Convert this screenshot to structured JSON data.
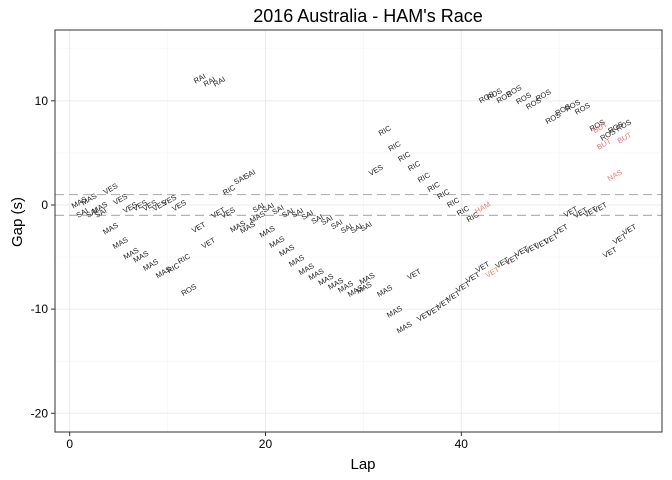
{
  "chart_data": {
    "type": "scatter",
    "title": "2016 Australia - HAM's Race",
    "xlabel": "Lap",
    "ylabel": "Gap (s)",
    "xlim": [
      -1.5,
      60.5
    ],
    "ylim": [
      -21.8,
      16.8
    ],
    "x_ticks": [
      0,
      20,
      40
    ],
    "y_ticks": [
      -20,
      -10,
      0,
      10
    ],
    "grid": true,
    "reference_lines": [
      1,
      -1
    ],
    "colors": {
      "default_label": "#1a1a1a",
      "highlight_label": "#f8766d",
      "grid_major": "#ebebeb",
      "grid_minor": "#f4f4f4",
      "panel_border": "#333333",
      "reference_line": "#b3b3b3"
    },
    "points": [
      {
        "x": 1,
        "y": 0.2,
        "label": "MAS"
      },
      {
        "x": 1.3,
        "y": -0.8,
        "label": "SAI"
      },
      {
        "x": 2,
        "y": 0.5,
        "label": "MAS"
      },
      {
        "x": 2.3,
        "y": -0.8,
        "label": "SAI"
      },
      {
        "x": 3.1,
        "y": -0.3,
        "label": "MAS"
      },
      {
        "x": 3.2,
        "y": -0.8,
        "label": "SAI"
      },
      {
        "x": 4.2,
        "y": 1.5,
        "label": "VES"
      },
      {
        "x": 4.2,
        "y": -2.3,
        "label": "MAS"
      },
      {
        "x": 5.2,
        "y": 0.5,
        "label": "VES"
      },
      {
        "x": 5.2,
        "y": -3.7,
        "label": "MAS"
      },
      {
        "x": 6.2,
        "y": -0.3,
        "label": "VES"
      },
      {
        "x": 6.3,
        "y": -4.7,
        "label": "MAS"
      },
      {
        "x": 7.2,
        "y": -0.1,
        "label": "VES"
      },
      {
        "x": 7.3,
        "y": -5.0,
        "label": "MAS"
      },
      {
        "x": 8.2,
        "y": -0.1,
        "label": "VES"
      },
      {
        "x": 8.3,
        "y": -5.8,
        "label": "MAS"
      },
      {
        "x": 9.2,
        "y": -0.1,
        "label": "VES"
      },
      {
        "x": 9.6,
        "y": -6.5,
        "label": "MAS"
      },
      {
        "x": 10.2,
        "y": 0.4,
        "label": "VES"
      },
      {
        "x": 10.6,
        "y": -6.1,
        "label": "RIC"
      },
      {
        "x": 11.2,
        "y": -0.1,
        "label": "VES"
      },
      {
        "x": 11.7,
        "y": -5.2,
        "label": "RIC"
      },
      {
        "x": 12.2,
        "y": -8.2,
        "label": "ROS"
      },
      {
        "x": 13.2,
        "y": -2.2,
        "label": "VET"
      },
      {
        "x": 13.3,
        "y": 12.1,
        "label": "RAI"
      },
      {
        "x": 14.2,
        "y": -3.7,
        "label": "VET"
      },
      {
        "x": 14.3,
        "y": 11.8,
        "label": "RAI"
      },
      {
        "x": 15.2,
        "y": -0.8,
        "label": "VET"
      },
      {
        "x": 15.3,
        "y": 11.8,
        "label": "RAI"
      },
      {
        "x": 16.2,
        "y": -0.8,
        "label": "VES"
      },
      {
        "x": 16.3,
        "y": 1.4,
        "label": "RIC"
      },
      {
        "x": 17.2,
        "y": -2.1,
        "label": "MAS"
      },
      {
        "x": 17.4,
        "y": 2.4,
        "label": "SAI"
      },
      {
        "x": 18.2,
        "y": -2.2,
        "label": "MAS"
      },
      {
        "x": 18.4,
        "y": 2.9,
        "label": "SAI"
      },
      {
        "x": 19.2,
        "y": -1.2,
        "label": "MAS"
      },
      {
        "x": 19.3,
        "y": -0.3,
        "label": "SAI"
      },
      {
        "x": 20.2,
        "y": -2.6,
        "label": "MAS"
      },
      {
        "x": 20.3,
        "y": -0.3,
        "label": "SAI"
      },
      {
        "x": 21.2,
        "y": -3.6,
        "label": "MAS"
      },
      {
        "x": 21.3,
        "y": -0.5,
        "label": "SAI"
      },
      {
        "x": 22.2,
        "y": -4.4,
        "label": "MAS"
      },
      {
        "x": 22.3,
        "y": -0.8,
        "label": "SAI"
      },
      {
        "x": 23.2,
        "y": -5.4,
        "label": "MAS"
      },
      {
        "x": 23.3,
        "y": -0.8,
        "label": "SAI"
      },
      {
        "x": 24.2,
        "y": -6.2,
        "label": "MAS"
      },
      {
        "x": 24.3,
        "y": -1.0,
        "label": "SAI"
      },
      {
        "x": 25.2,
        "y": -6.7,
        "label": "MAS"
      },
      {
        "x": 25.3,
        "y": -1.4,
        "label": "SAI"
      },
      {
        "x": 26.2,
        "y": -7.2,
        "label": "MAS"
      },
      {
        "x": 26.3,
        "y": -1.5,
        "label": "SAI"
      },
      {
        "x": 27.2,
        "y": -7.6,
        "label": "MAS"
      },
      {
        "x": 27.3,
        "y": -1.9,
        "label": "SAI"
      },
      {
        "x": 28.2,
        "y": -7.9,
        "label": "MAS"
      },
      {
        "x": 28.3,
        "y": -2.3,
        "label": "SAI"
      },
      {
        "x": 29.2,
        "y": -8.3,
        "label": "MAS"
      },
      {
        "x": 29.3,
        "y": -2.3,
        "label": "SAI"
      },
      {
        "x": 30.1,
        "y": -8.0,
        "label": "MAS"
      },
      {
        "x": 30.4,
        "y": -7.1,
        "label": "MAS"
      },
      {
        "x": 30.3,
        "y": -2.1,
        "label": "SAI"
      },
      {
        "x": 31.3,
        "y": 3.3,
        "label": "VES"
      },
      {
        "x": 32.2,
        "y": 7.1,
        "label": "RIC"
      },
      {
        "x": 32.2,
        "y": -8.3,
        "label": "MAS"
      },
      {
        "x": 33.2,
        "y": 5.6,
        "label": "RIC"
      },
      {
        "x": 33.2,
        "y": -10.3,
        "label": "MAS"
      },
      {
        "x": 34.2,
        "y": 4.6,
        "label": "RIC"
      },
      {
        "x": 34.2,
        "y": -11.8,
        "label": "MAS"
      },
      {
        "x": 35.2,
        "y": 3.7,
        "label": "RIC"
      },
      {
        "x": 35.2,
        "y": -6.7,
        "label": "VET"
      },
      {
        "x": 36.2,
        "y": 2.6,
        "label": "RIC"
      },
      {
        "x": 36.2,
        "y": -10.7,
        "label": "VET"
      },
      {
        "x": 37.2,
        "y": 1.7,
        "label": "RIC"
      },
      {
        "x": 37.2,
        "y": -10.2,
        "label": "VET"
      },
      {
        "x": 38.2,
        "y": 1.0,
        "label": "RIC"
      },
      {
        "x": 38.2,
        "y": -9.5,
        "label": "VET"
      },
      {
        "x": 39.2,
        "y": 0.2,
        "label": "RIC"
      },
      {
        "x": 39.2,
        "y": -8.8,
        "label": "VET"
      },
      {
        "x": 40.2,
        "y": -0.6,
        "label": "RIC"
      },
      {
        "x": 40.2,
        "y": -7.9,
        "label": "VET"
      },
      {
        "x": 41.2,
        "y": -1.2,
        "label": "RIC"
      },
      {
        "x": 41.2,
        "y": -7.0,
        "label": "VET"
      },
      {
        "x": 42.2,
        "y": -0.3,
        "label": "HAM",
        "highlight": true
      },
      {
        "x": 42.2,
        "y": -6.0,
        "label": "VET"
      },
      {
        "x": 42.6,
        "y": 10.3,
        "label": "ROS"
      },
      {
        "x": 43.2,
        "y": -6.5,
        "label": "VET",
        "highlight": true
      },
      {
        "x": 43.4,
        "y": 10.6,
        "label": "ROS"
      },
      {
        "x": 44.2,
        "y": -5.6,
        "label": "VET"
      },
      {
        "x": 44.4,
        "y": 10.3,
        "label": "ROS"
      },
      {
        "x": 45.2,
        "y": -5.3,
        "label": "VET"
      },
      {
        "x": 45.4,
        "y": 10.9,
        "label": "ROS"
      },
      {
        "x": 46.2,
        "y": -4.5,
        "label": "VET"
      },
      {
        "x": 46.4,
        "y": 10.2,
        "label": "ROS"
      },
      {
        "x": 47.2,
        "y": -4.2,
        "label": "VET"
      },
      {
        "x": 47.4,
        "y": 9.7,
        "label": "ROS"
      },
      {
        "x": 48.2,
        "y": -3.8,
        "label": "VET"
      },
      {
        "x": 48.4,
        "y": 10.5,
        "label": "ROS"
      },
      {
        "x": 49.2,
        "y": -3.3,
        "label": "VET"
      },
      {
        "x": 49.4,
        "y": 8.3,
        "label": "ROS"
      },
      {
        "x": 50.2,
        "y": -2.4,
        "label": "VET"
      },
      {
        "x": 50.4,
        "y": 9.1,
        "label": "ROS"
      },
      {
        "x": 51.2,
        "y": -0.7,
        "label": "VET"
      },
      {
        "x": 51.4,
        "y": 9.5,
        "label": "ROS"
      },
      {
        "x": 52.2,
        "y": -0.8,
        "label": "VET"
      },
      {
        "x": 52.4,
        "y": 9.2,
        "label": "ROS"
      },
      {
        "x": 53.2,
        "y": -0.7,
        "label": "VET"
      },
      {
        "x": 53.9,
        "y": 7.6,
        "label": "ROS"
      },
      {
        "x": 54.2,
        "y": -0.3,
        "label": "VET"
      },
      {
        "x": 54.2,
        "y": 7.4,
        "label": "BUT",
        "highlight": true
      },
      {
        "x": 54.6,
        "y": 5.8,
        "label": "BUT",
        "highlight": true
      },
      {
        "x": 55.0,
        "y": 6.7,
        "label": "ROS"
      },
      {
        "x": 55.2,
        "y": -4.6,
        "label": "VET"
      },
      {
        "x": 55.7,
        "y": 2.8,
        "label": "NAS",
        "highlight": true
      },
      {
        "x": 55.8,
        "y": 7.4,
        "label": "ROS"
      },
      {
        "x": 56.2,
        "y": -3.3,
        "label": "VET"
      },
      {
        "x": 56.6,
        "y": 7.6,
        "label": "ROS"
      },
      {
        "x": 56.7,
        "y": 6.4,
        "label": "BUT",
        "highlight": true
      },
      {
        "x": 57.2,
        "y": -2.4,
        "label": "VET"
      }
    ]
  }
}
